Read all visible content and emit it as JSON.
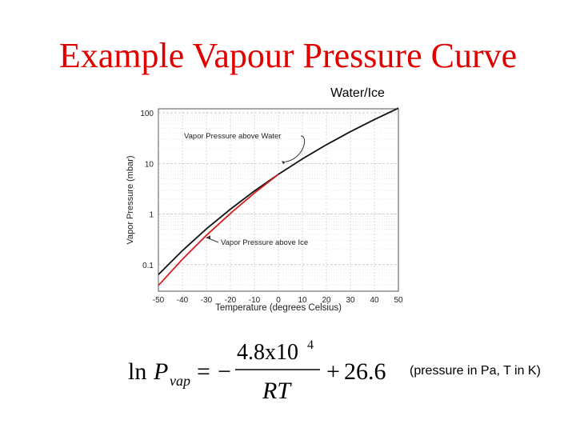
{
  "slide": {
    "title": "Example Vapour Pressure Curve",
    "caption": "Water/Ice",
    "note": "(pressure in Pa, T in K)"
  },
  "formula": {
    "ln": "ln",
    "p": "P",
    "subscript": "vap",
    "equals": "=",
    "minus": "−",
    "numerator_base": "4.8x10",
    "numerator_exp": "4",
    "denominator": "RT",
    "plus": "+",
    "constant": "26.6"
  },
  "chart_data": {
    "type": "line",
    "xlabel": "Temperature (degrees Celsius)",
    "ylabel": "Vapor Pressure (mbar)",
    "xlim": [
      -50,
      50
    ],
    "ylim": [
      0.03,
      120
    ],
    "yscale": "log",
    "grid": true,
    "x_ticks": [
      -50,
      -40,
      -30,
      -20,
      -10,
      0,
      10,
      20,
      30,
      40,
      50
    ],
    "y_ticks": [
      0.1,
      1,
      10,
      100
    ],
    "y_tick_labels": [
      "0.1",
      "1",
      "10",
      "100"
    ],
    "colors": {
      "water": "#111111",
      "ice": "#d42020"
    },
    "series": [
      {
        "key": "water",
        "x": [
          -50,
          -40,
          -30,
          -20,
          -10,
          0,
          10,
          20,
          30,
          40,
          50
        ],
        "y": [
          0.064,
          0.19,
          0.51,
          1.25,
          2.86,
          6.11,
          12.3,
          23.4,
          42.4,
          73.8,
          123.4
        ]
      },
      {
        "key": "ice",
        "x": [
          -50,
          -40,
          -30,
          -20,
          -10,
          0
        ],
        "y": [
          0.039,
          0.128,
          0.38,
          1.03,
          2.6,
          6.11
        ]
      }
    ],
    "annotations": [
      {
        "text": "Vapor Pressure above Water",
        "series": "water",
        "target_x": 5
      },
      {
        "text": "Vapor Pressure above Ice",
        "series": "ice",
        "target_x": -31
      }
    ]
  }
}
